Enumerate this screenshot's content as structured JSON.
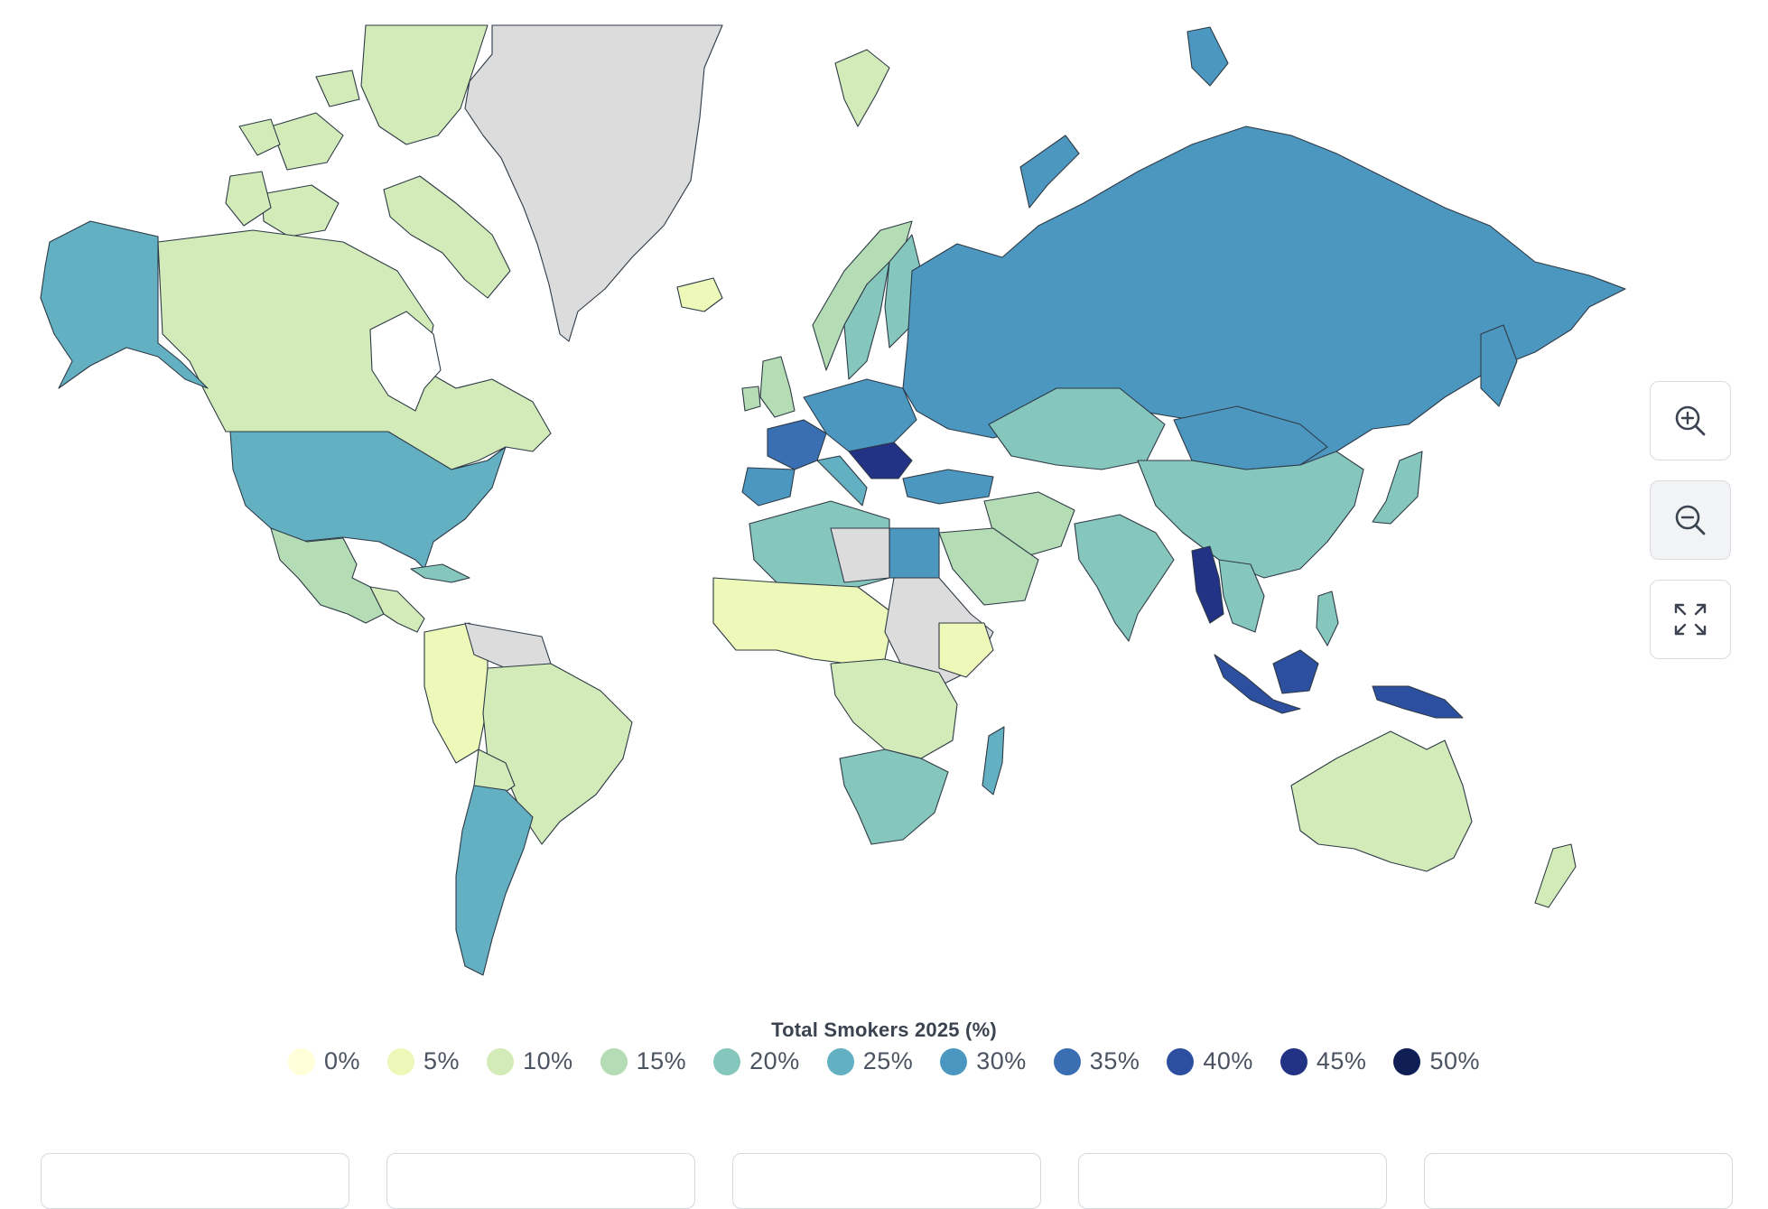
{
  "map": {
    "no_data_color": "#dcdcdc",
    "border_color": "#2e3a46"
  },
  "controls": {
    "zoom_in_icon": "zoom-in-icon",
    "zoom_out_icon": "zoom-out-icon",
    "fullscreen_icon": "fullscreen-icon"
  },
  "legend": {
    "title": "Total Smokers 2025 (%)",
    "items": [
      {
        "label": "0%",
        "color": "#ffffd9"
      },
      {
        "label": "5%",
        "color": "#eef8b8"
      },
      {
        "label": "10%",
        "color": "#d2ebb8"
      },
      {
        "label": "15%",
        "color": "#b4ddb6"
      },
      {
        "label": "20%",
        "color": "#86c7bd"
      },
      {
        "label": "25%",
        "color": "#63b0c2"
      },
      {
        "label": "30%",
        "color": "#4c97c0"
      },
      {
        "label": "35%",
        "color": "#3a6fb3"
      },
      {
        "label": "40%",
        "color": "#2c4fa0"
      },
      {
        "label": "45%",
        "color": "#223285"
      },
      {
        "label": "50%",
        "color": "#0f1f56"
      }
    ]
  }
}
